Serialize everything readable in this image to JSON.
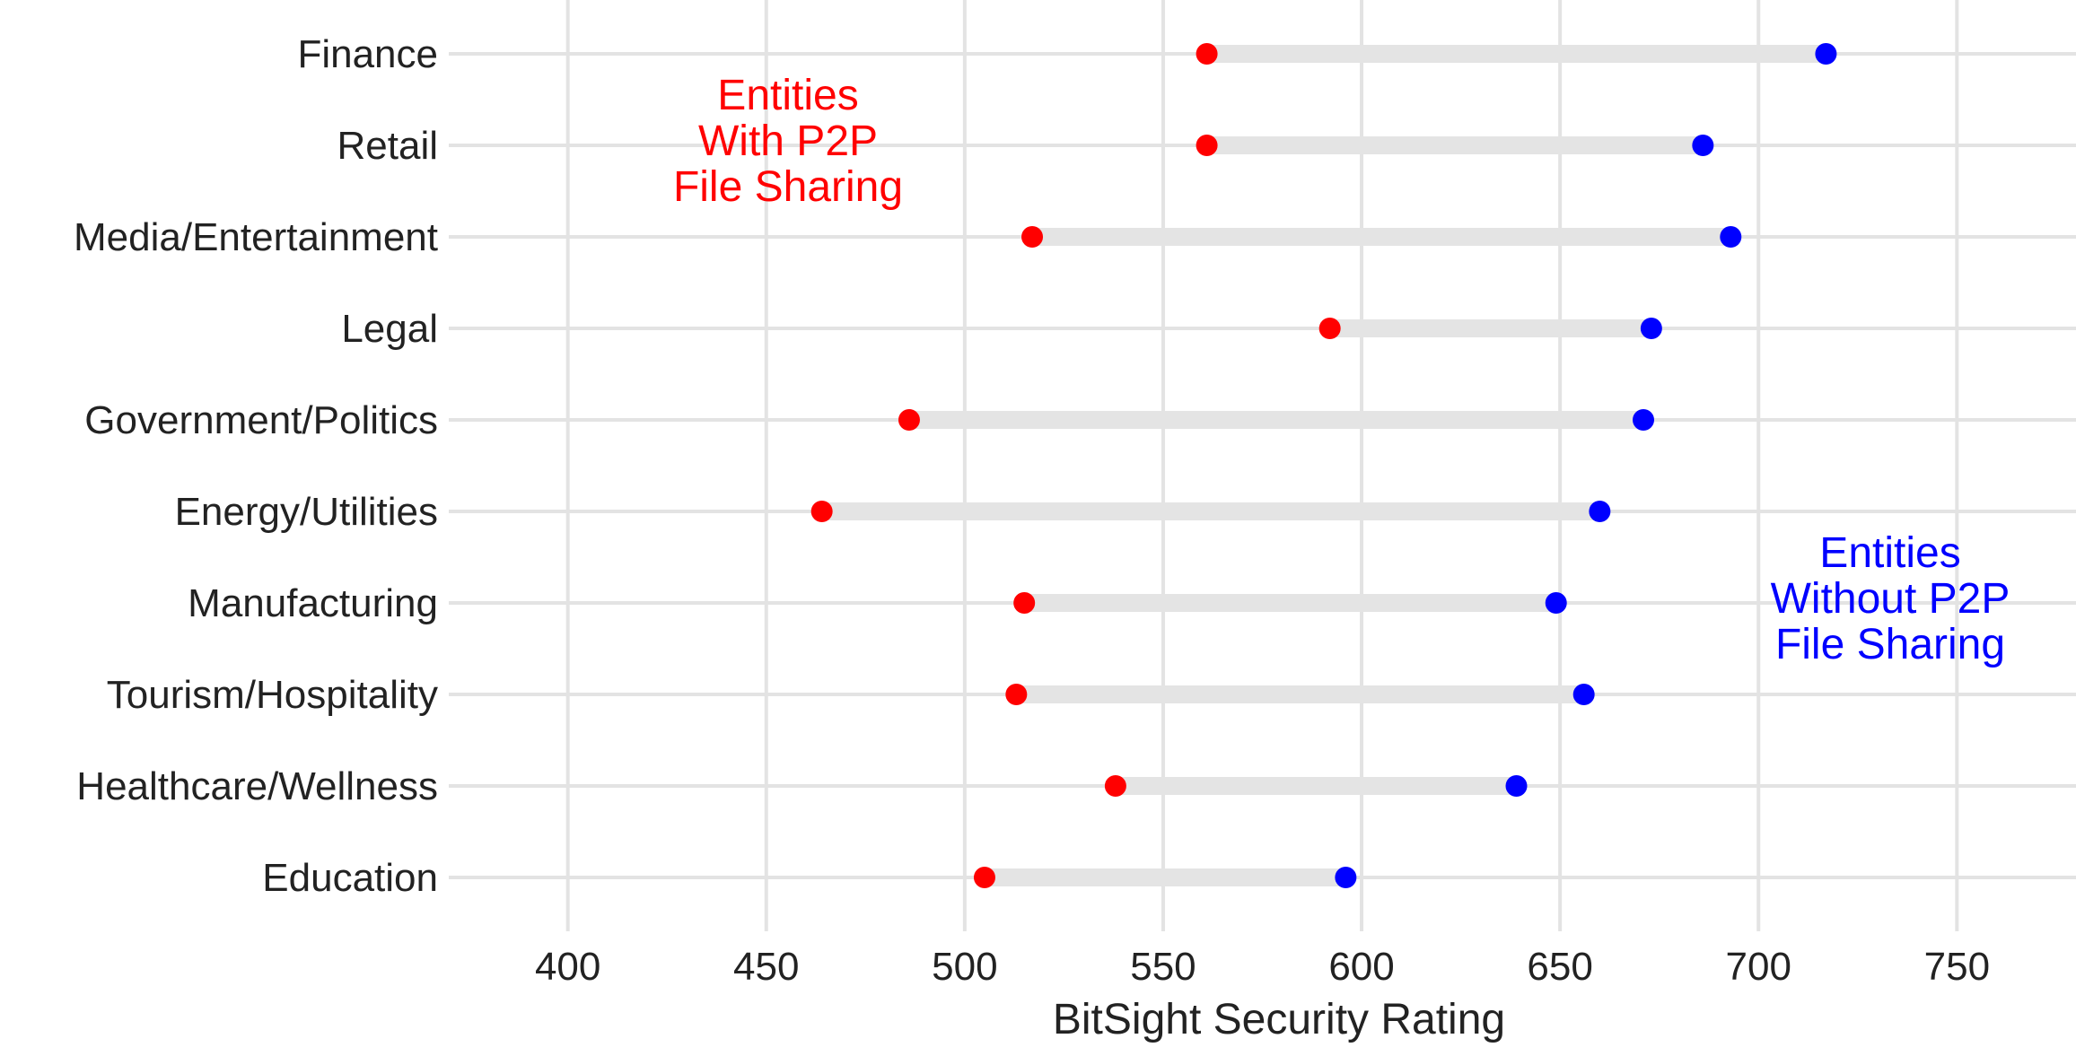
{
  "chart_data": {
    "type": "dumbbell",
    "xlabel": "BitSight Security Rating",
    "xlim": [
      370,
      780
    ],
    "x_ticks": [
      "400",
      "450",
      "500",
      "550",
      "600",
      "650",
      "700",
      "750"
    ],
    "grid": true,
    "categories": [
      "Finance",
      "Retail",
      "Media/Entertainment",
      "Legal",
      "Government/Politics",
      "Energy/Utilities",
      "Manufacturing",
      "Tourism/Hospitality",
      "Healthcare/Wellness",
      "Education"
    ],
    "series": [
      {
        "name": "Entities With P2P File Sharing",
        "color": "#ff0000",
        "values": [
          561,
          561,
          517,
          592,
          486,
          464,
          515,
          513,
          538,
          505
        ]
      },
      {
        "name": "Entities Without P2P File Sharing",
        "color": "#0000ff",
        "values": [
          717,
          686,
          693,
          673,
          671,
          660,
          649,
          656,
          639,
          596
        ]
      }
    ],
    "annotations": [
      {
        "lines": [
          "Entities",
          "With P2P",
          "File Sharing"
        ],
        "color": "#ff0000"
      },
      {
        "lines": [
          "Entities",
          "Without P2P",
          "File Sharing"
        ],
        "color": "#0000ff"
      }
    ]
  }
}
